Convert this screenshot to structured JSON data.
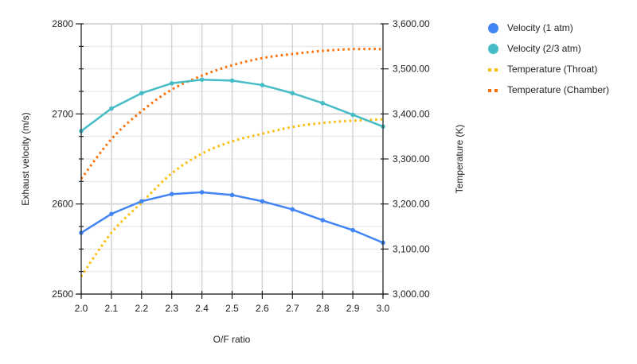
{
  "chart_data": {
    "type": "line",
    "title": "",
    "xlabel": "O/F ratio",
    "ylabel": "Exhaust velocity (m/s)",
    "y2label": "Temperature (K)",
    "x": [
      2.0,
      2.1,
      2.2,
      2.3,
      2.4,
      2.5,
      2.6,
      2.7,
      2.8,
      2.9,
      3.0
    ],
    "x_tick_labels": [
      "2.0",
      "2.1",
      "2.2",
      "2.3",
      "2.4",
      "2.5",
      "2.6",
      "2.7",
      "2.8",
      "2.9",
      "3.0"
    ],
    "xlim": [
      2.0,
      3.0
    ],
    "ylim": [
      2500,
      2800
    ],
    "y_tick_labels": [
      "2500",
      "2600",
      "2700",
      "2800"
    ],
    "y2lim": [
      3000,
      3600
    ],
    "y2_tick_labels": [
      "3,000.00",
      "3,100.00",
      "3,200.00",
      "3,300.00",
      "3,400.00",
      "3,500.00",
      "3,600.00"
    ],
    "grid": true,
    "legend_position": "right",
    "series": [
      {
        "name": "Velocity (1 atm)",
        "axis": "left",
        "style": "solid-markers",
        "color": "#4285f4",
        "values": [
          2568,
          2589,
          2603,
          2611,
          2613,
          2610,
          2603,
          2594,
          2582,
          2571,
          2557
        ]
      },
      {
        "name": "Velocity (2/3 atm)",
        "axis": "left",
        "style": "solid-markers",
        "color": "#46bdc6",
        "values": [
          2681,
          2706,
          2723,
          2734,
          2738,
          2737,
          2732,
          2723,
          2712,
          2699,
          2686
        ]
      },
      {
        "name": "Temperature (Throat)",
        "axis": "right",
        "style": "dotted",
        "color": "#fbbc04",
        "values": [
          3039,
          3136,
          3203,
          3268,
          3312,
          3339,
          3356,
          3371,
          3380,
          3385,
          3388
        ]
      },
      {
        "name": "Temperature (Chamber)",
        "axis": "right",
        "style": "dotted",
        "color": "#ff6d01",
        "values": [
          3256,
          3344,
          3406,
          3454,
          3485,
          3508,
          3524,
          3533,
          3540,
          3544,
          3544
        ]
      }
    ]
  },
  "legend": {
    "items": [
      {
        "label": "Velocity (1 atm)",
        "color": "#4285f4",
        "shape": "dot"
      },
      {
        "label": "Velocity (2/3 atm)",
        "color": "#46bdc6",
        "shape": "dot"
      },
      {
        "label": "Temperature (Throat)",
        "color": "#fbbc04",
        "shape": "dash"
      },
      {
        "label": "Temperature (Chamber)",
        "color": "#ff6d01",
        "shape": "dash"
      }
    ]
  },
  "axes": {
    "x_title": "O/F ratio",
    "y_left_title": "Exhaust velocity (m/s)",
    "y_right_title": "Temperature (K)"
  }
}
